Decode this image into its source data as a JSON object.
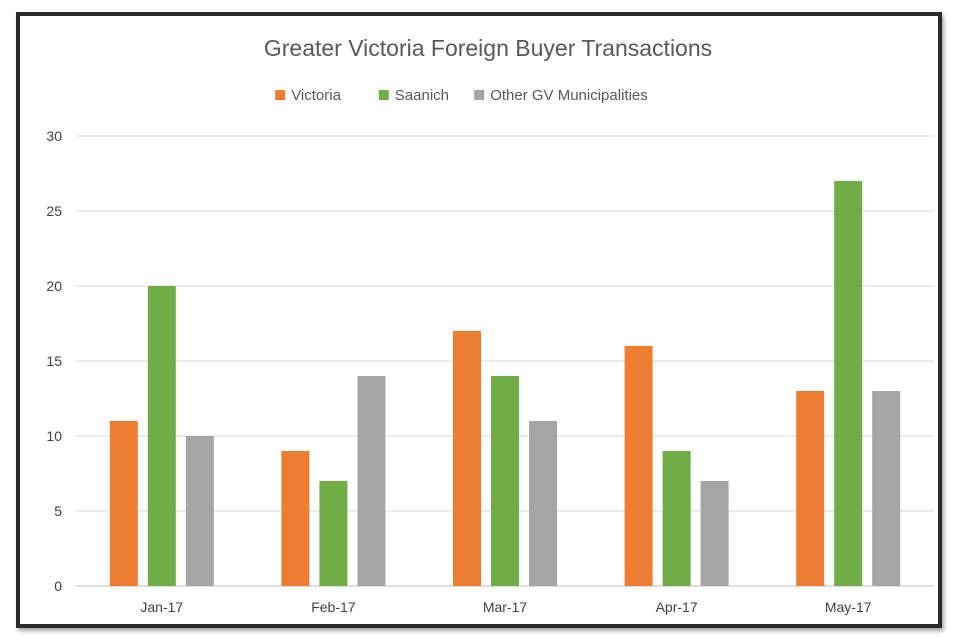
{
  "chart_data": {
    "type": "bar",
    "title": "Greater Victoria Foreign Buyer Transactions",
    "xlabel": "",
    "ylabel": "",
    "categories": [
      "Jan-17",
      "Feb-17",
      "Mar-17",
      "Apr-17",
      "May-17"
    ],
    "series": [
      {
        "name": "Victoria",
        "color": "#ED7D31",
        "values": [
          11,
          9,
          17,
          16,
          13
        ]
      },
      {
        "name": "Saanich",
        "color": "#70AD47",
        "values": [
          20,
          7,
          14,
          9,
          27
        ]
      },
      {
        "name": "Other GV Municipalities",
        "color": "#A5A5A5",
        "values": [
          10,
          14,
          11,
          7,
          13
        ]
      }
    ],
    "ylim": [
      0,
      30
    ],
    "yticks": [
      0,
      5,
      10,
      15,
      20,
      25,
      30
    ],
    "grid": true,
    "legend_position": "top"
  }
}
